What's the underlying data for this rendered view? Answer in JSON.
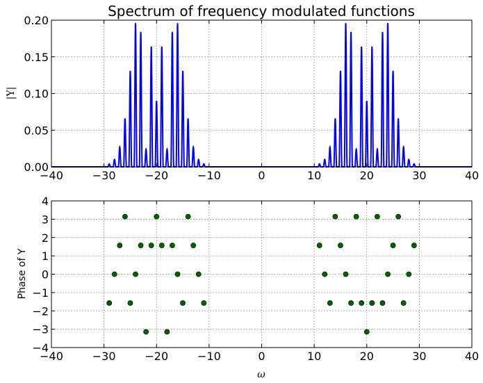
{
  "chart_data": [
    {
      "type": "line",
      "title": "Spectrum of frequency modulated functions",
      "ylabel": "|Y|",
      "xlabel": "",
      "xlim": [
        -40,
        40
      ],
      "ylim": [
        0,
        0.2
      ],
      "xticks": [
        -40,
        -30,
        -20,
        -10,
        0,
        10,
        20,
        30,
        40
      ],
      "yticks": [
        0.0,
        0.05,
        0.1,
        0.15,
        0.2
      ],
      "xtick_labels": [
        "−40",
        "−30",
        "−20",
        "−10",
        "0",
        "10",
        "20",
        "30",
        "40"
      ],
      "ytick_labels": [
        "0.00",
        "0.05",
        "0.10",
        "0.15",
        "0.20"
      ],
      "grid": true,
      "line_color": "#0000ff",
      "peaks": [
        {
          "x": -29,
          "y": 0.004
        },
        {
          "x": -28,
          "y": 0.01
        },
        {
          "x": -27,
          "y": 0.027
        },
        {
          "x": -26,
          "y": 0.066
        },
        {
          "x": -25,
          "y": 0.131
        },
        {
          "x": -24,
          "y": 0.196
        },
        {
          "x": -23,
          "y": 0.184
        },
        {
          "x": -22,
          "y": 0.024
        },
        {
          "x": -21,
          "y": 0.164
        },
        {
          "x": -20,
          "y": 0.09
        },
        {
          "x": -19,
          "y": 0.164
        },
        {
          "x": -18,
          "y": 0.024
        },
        {
          "x": -17,
          "y": 0.184
        },
        {
          "x": -16,
          "y": 0.196
        },
        {
          "x": -15,
          "y": 0.131
        },
        {
          "x": -14,
          "y": 0.066
        },
        {
          "x": -13,
          "y": 0.027
        },
        {
          "x": -12,
          "y": 0.01
        },
        {
          "x": -11,
          "y": 0.004
        },
        {
          "x": 11,
          "y": 0.004
        },
        {
          "x": 12,
          "y": 0.01
        },
        {
          "x": 13,
          "y": 0.027
        },
        {
          "x": 14,
          "y": 0.066
        },
        {
          "x": 15,
          "y": 0.131
        },
        {
          "x": 16,
          "y": 0.196
        },
        {
          "x": 17,
          "y": 0.184
        },
        {
          "x": 18,
          "y": 0.024
        },
        {
          "x": 19,
          "y": 0.164
        },
        {
          "x": 20,
          "y": 0.09
        },
        {
          "x": 21,
          "y": 0.164
        },
        {
          "x": 22,
          "y": 0.024
        },
        {
          "x": 23,
          "y": 0.184
        },
        {
          "x": 24,
          "y": 0.196
        },
        {
          "x": 25,
          "y": 0.131
        },
        {
          "x": 26,
          "y": 0.066
        },
        {
          "x": 27,
          "y": 0.027
        },
        {
          "x": 28,
          "y": 0.01
        },
        {
          "x": 29,
          "y": 0.004
        }
      ]
    },
    {
      "type": "scatter",
      "title": "",
      "ylabel": "Phase of Y",
      "xlabel": "ω",
      "xlim": [
        -40,
        40
      ],
      "ylim": [
        -4,
        4
      ],
      "xticks": [
        -40,
        -30,
        -20,
        -10,
        0,
        10,
        20,
        30,
        40
      ],
      "yticks": [
        -4,
        -3,
        -2,
        -1,
        0,
        1,
        2,
        3,
        4
      ],
      "xtick_labels": [
        "−40",
        "−30",
        "−20",
        "−10",
        "0",
        "10",
        "20",
        "30",
        "40"
      ],
      "ytick_labels": [
        "−4",
        "−3",
        "−2",
        "−1",
        "0",
        "1",
        "2",
        "3",
        "4"
      ],
      "grid": true,
      "marker_color": "#006400",
      "points": [
        {
          "x": -29,
          "y": -1.5708
        },
        {
          "x": -28,
          "y": 0
        },
        {
          "x": -27,
          "y": 1.5708
        },
        {
          "x": -26,
          "y": 3.1416
        },
        {
          "x": -25,
          "y": -1.5708
        },
        {
          "x": -24,
          "y": 0
        },
        {
          "x": -23,
          "y": 1.5708
        },
        {
          "x": -22,
          "y": -3.1416
        },
        {
          "x": -21,
          "y": 1.5708
        },
        {
          "x": -20,
          "y": 3.1416
        },
        {
          "x": -19,
          "y": 1.5708
        },
        {
          "x": -18,
          "y": -3.1416
        },
        {
          "x": -17,
          "y": 1.5708
        },
        {
          "x": -16,
          "y": 0
        },
        {
          "x": -15,
          "y": -1.5708
        },
        {
          "x": -14,
          "y": 3.1416
        },
        {
          "x": -13,
          "y": 1.5708
        },
        {
          "x": -12,
          "y": 0
        },
        {
          "x": -11,
          "y": -1.5708
        },
        {
          "x": 11,
          "y": 1.5708
        },
        {
          "x": 12,
          "y": 0
        },
        {
          "x": 13,
          "y": -1.5708
        },
        {
          "x": 14,
          "y": 3.1416
        },
        {
          "x": 15,
          "y": 1.5708
        },
        {
          "x": 16,
          "y": 0
        },
        {
          "x": 17,
          "y": -1.5708
        },
        {
          "x": 18,
          "y": 3.1416
        },
        {
          "x": 19,
          "y": -1.5708
        },
        {
          "x": 20,
          "y": -3.1416
        },
        {
          "x": 21,
          "y": -1.5708
        },
        {
          "x": 22,
          "y": 3.1416
        },
        {
          "x": 23,
          "y": -1.5708
        },
        {
          "x": 24,
          "y": 0
        },
        {
          "x": 25,
          "y": 1.5708
        },
        {
          "x": 26,
          "y": 3.1416
        },
        {
          "x": 27,
          "y": -1.5708
        },
        {
          "x": 28,
          "y": 0
        },
        {
          "x": 29,
          "y": 1.5708
        }
      ]
    }
  ]
}
